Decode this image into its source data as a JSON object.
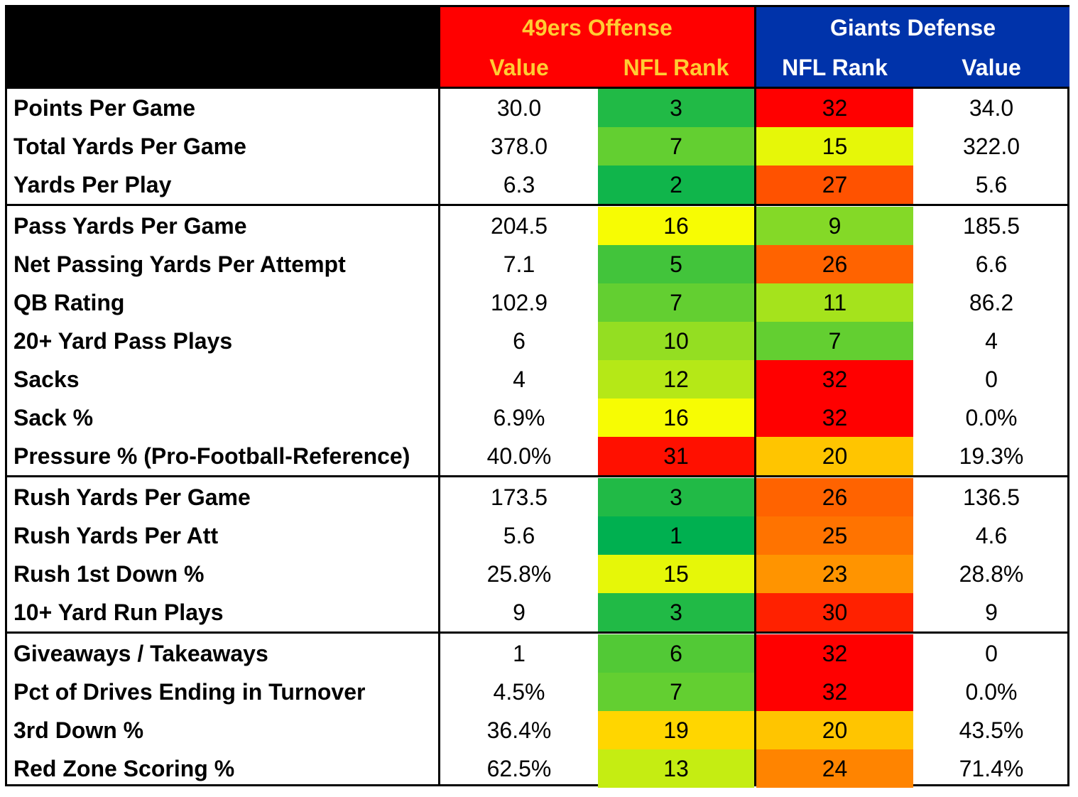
{
  "header": {
    "offense_title": "49ers Offense",
    "defense_title": "Giants Defense",
    "offense_col1": "Value",
    "offense_col2": "NFL Rank",
    "defense_col1": "NFL Rank",
    "defense_col2": "Value"
  },
  "colors": {
    "offense_header_bg": "#ff0000",
    "offense_header_text": "#ffcc33",
    "defense_header_bg": "#0033aa",
    "defense_header_text": "#ffffff"
  },
  "groups": [
    [
      {
        "label": "Points Per Game",
        "off_value": "30.0",
        "off_rank": "3",
        "def_rank": "32",
        "def_value": "34.0"
      },
      {
        "label": "Total Yards Per Game",
        "off_value": "378.0",
        "off_rank": "7",
        "def_rank": "15",
        "def_value": "322.0"
      },
      {
        "label": "Yards Per Play",
        "off_value": "6.3",
        "off_rank": "2",
        "def_rank": "27",
        "def_value": "5.6"
      }
    ],
    [
      {
        "label": "Pass Yards Per Game",
        "off_value": "204.5",
        "off_rank": "16",
        "def_rank": "9",
        "def_value": "185.5"
      },
      {
        "label": "Net Passing Yards Per Attempt",
        "off_value": "7.1",
        "off_rank": "5",
        "def_rank": "26",
        "def_value": "6.6"
      },
      {
        "label": "QB Rating",
        "off_value": "102.9",
        "off_rank": "7",
        "def_rank": "11",
        "def_value": "86.2"
      },
      {
        "label": "20+ Yard Pass Plays",
        "off_value": "6",
        "off_rank": "10",
        "def_rank": "7",
        "def_value": "4"
      },
      {
        "label": "Sacks",
        "off_value": "4",
        "off_rank": "12",
        "def_rank": "32",
        "def_value": "0"
      },
      {
        "label": "Sack %",
        "off_value": "6.9%",
        "off_rank": "16",
        "def_rank": "32",
        "def_value": "0.0%"
      },
      {
        "label": "Pressure % (Pro-Football-Reference)",
        "off_value": "40.0%",
        "off_rank": "31",
        "def_rank": "20",
        "def_value": "19.3%"
      }
    ],
    [
      {
        "label": "Rush Yards Per Game",
        "off_value": "173.5",
        "off_rank": "3",
        "def_rank": "26",
        "def_value": "136.5"
      },
      {
        "label": "Rush Yards Per Att",
        "off_value": "5.6",
        "off_rank": "1",
        "def_rank": "25",
        "def_value": "4.6"
      },
      {
        "label": "Rush 1st Down %",
        "off_value": "25.8%",
        "off_rank": "15",
        "def_rank": "23",
        "def_value": "28.8%"
      },
      {
        "label": "10+ Yard Run Plays",
        "off_value": "9",
        "off_rank": "3",
        "def_rank": "30",
        "def_value": "9"
      }
    ],
    [
      {
        "label": "Giveaways / Takeaways",
        "off_value": "1",
        "off_rank": "6",
        "def_rank": "32",
        "def_value": "0"
      },
      {
        "label": "Pct of Drives Ending in Turnover",
        "off_value": "4.5%",
        "off_rank": "7",
        "def_rank": "32",
        "def_value": "0.0%"
      },
      {
        "label": "3rd Down %",
        "off_value": "36.4%",
        "off_rank": "19",
        "def_rank": "20",
        "def_value": "43.5%"
      },
      {
        "label": "Red Zone Scoring %",
        "off_value": "62.5%",
        "off_rank": "13",
        "def_rank": "24",
        "def_value": "71.4%"
      }
    ]
  ]
}
